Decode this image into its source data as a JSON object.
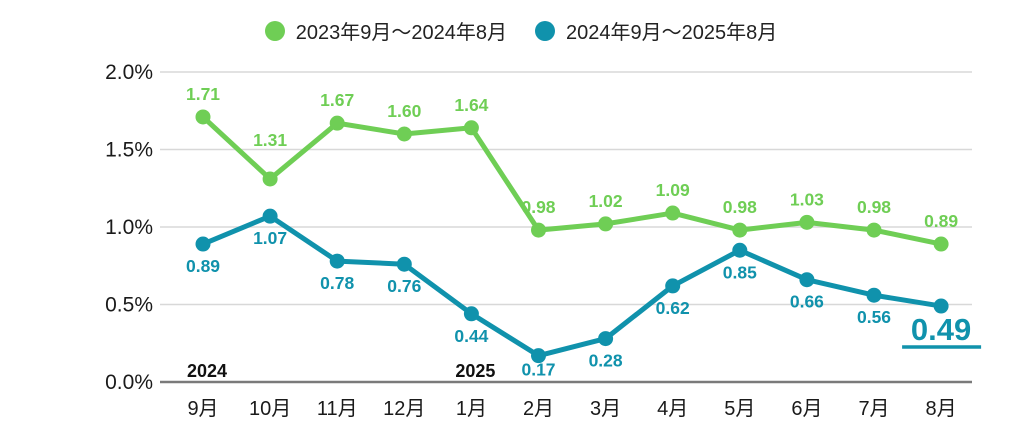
{
  "chart_data": {
    "type": "line",
    "title": "",
    "xlabel": "",
    "ylabel": "",
    "ylim": [
      0,
      2.0
    ],
    "grid": "horizontal",
    "legend_position": "top",
    "categories": [
      "9月",
      "10月",
      "11月",
      "12月",
      "1月",
      "2月",
      "3月",
      "4月",
      "5月",
      "6月",
      "7月",
      "8月"
    ],
    "series": [
      {
        "name": "2023年9月〜2024年8月",
        "color": "#6fce55",
        "label_position": "above",
        "values": [
          1.71,
          1.31,
          1.67,
          1.6,
          1.64,
          0.98,
          1.02,
          1.09,
          0.98,
          1.03,
          0.98,
          0.89
        ]
      },
      {
        "name": "2024年9月〜2025年8月",
        "color": "#1092ac",
        "label_position": "below",
        "values": [
          0.89,
          1.07,
          0.78,
          0.76,
          0.44,
          0.17,
          0.28,
          0.62,
          0.85,
          0.66,
          0.56,
          0.49
        ]
      }
    ],
    "yticks": [
      {
        "value": 0.0,
        "label": "0.0%"
      },
      {
        "value": 0.5,
        "label": "0.5%"
      },
      {
        "value": 1.0,
        "label": "1.0%"
      },
      {
        "value": 1.5,
        "label": "1.5%"
      },
      {
        "value": 2.0,
        "label": "2.0%"
      }
    ],
    "year_annotations": [
      {
        "text": "2024",
        "month_index": 0
      },
      {
        "text": "2025",
        "month_index": 4
      }
    ],
    "highlight": {
      "series": 1,
      "index": 11,
      "label": "0.49"
    },
    "colors": {
      "gridline": "#d8d8d8",
      "axis_line": "#7a7a7a",
      "axis_text": "#1a1a1a",
      "year_text": "#111111"
    }
  }
}
